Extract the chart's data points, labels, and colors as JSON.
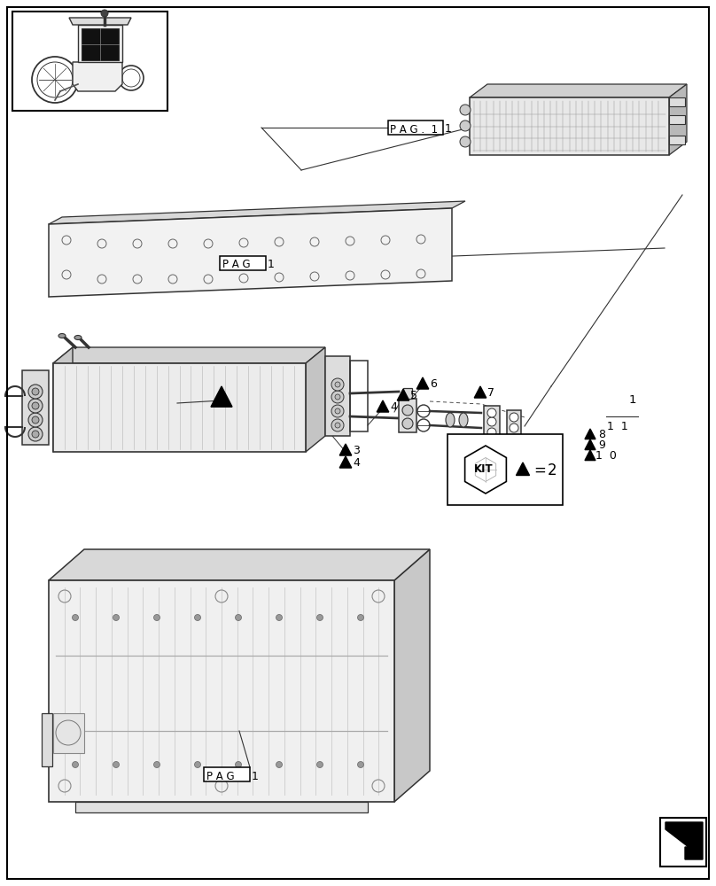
{
  "bg_color": "#ffffff",
  "fig_width": 8.08,
  "fig_height": 10.0,
  "dpi": 100,
  "pag1_top_label": "P A G .  1",
  "pag1_mid_label": "P A G",
  "pag1_bot_label": "P A G",
  "kit_label": "KIT",
  "kit_num": "2",
  "line_color": "#333333",
  "light_gray": "#e8e8e8",
  "mid_gray": "#cccccc",
  "dark_line": "#444444"
}
